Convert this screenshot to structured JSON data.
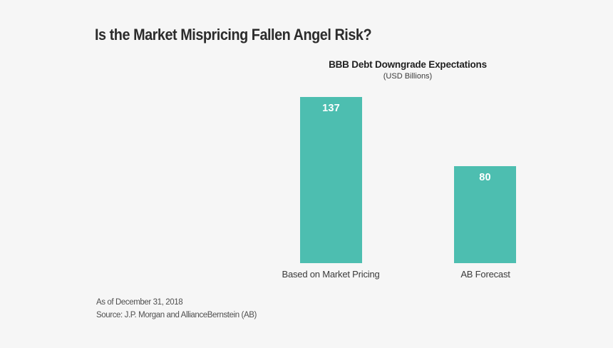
{
  "page": {
    "background": "#f6f6f6",
    "title": "Is the Market Mispricing Fallen Angel Risk?"
  },
  "chart_data": {
    "type": "bar",
    "title": "BBB Debt Downgrade Expectations",
    "units_label": "(USD Billions)",
    "categories": [
      "Based on Market Pricing",
      "AB Forecast"
    ],
    "values": [
      137,
      80
    ],
    "ylim": [
      0,
      140
    ],
    "grid": false,
    "legend": false,
    "axis_lines": false,
    "bar_color": "#4dbeb0",
    "value_label_color": "#ffffff",
    "value_label_position": "inside-top"
  },
  "footer": {
    "as_of": "As of December 31, 2018",
    "source": "Source: J.P. Morgan and AllianceBernstein (AB)"
  }
}
